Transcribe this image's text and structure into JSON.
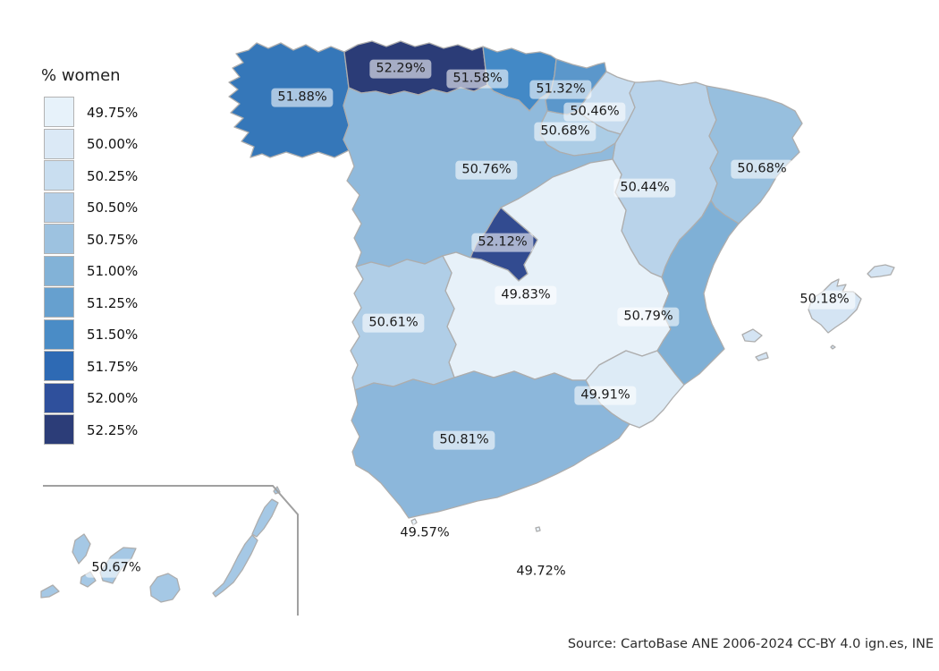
{
  "legend": {
    "title": "% women",
    "items": [
      {
        "label": "49.75%",
        "color": "#e7f2fa"
      },
      {
        "label": "50.00%",
        "color": "#dbe9f6"
      },
      {
        "label": "50.25%",
        "color": "#c9def0"
      },
      {
        "label": "50.50%",
        "color": "#b5d0e8"
      },
      {
        "label": "50.75%",
        "color": "#9dc2e0"
      },
      {
        "label": "51.00%",
        "color": "#82b2d7"
      },
      {
        "label": "51.25%",
        "color": "#66a0cf"
      },
      {
        "label": "51.50%",
        "color": "#4a8cc6"
      },
      {
        "label": "51.75%",
        "color": "#2e6ab4"
      },
      {
        "label": "52.00%",
        "color": "#2f509c"
      },
      {
        "label": "52.25%",
        "color": "#2c3d78"
      }
    ]
  },
  "map": {
    "regions": [
      {
        "id": "galicia",
        "name": "Galicia",
        "value": 51.88,
        "label": "51.88%",
        "fill": "#3577b9"
      },
      {
        "id": "asturias",
        "name": "Asturias",
        "value": 52.29,
        "label": "52.29%",
        "fill": "#2b3c77"
      },
      {
        "id": "cantabria",
        "name": "Cantabria",
        "value": 51.58,
        "label": "51.58%",
        "fill": "#4389c6"
      },
      {
        "id": "pais_vasco",
        "name": "Pais Vasco",
        "value": 51.32,
        "label": "51.32%",
        "fill": "#5b97cb"
      },
      {
        "id": "navarra",
        "name": "Navarra",
        "value": 50.46,
        "label": "50.46%",
        "fill": "#c7dcef"
      },
      {
        "id": "la_rioja",
        "name": "La Rioja",
        "value": 50.68,
        "label": "50.68%",
        "fill": "#accde6"
      },
      {
        "id": "aragon",
        "name": "Aragon",
        "value": 50.44,
        "label": "50.44%",
        "fill": "#b9d3ea"
      },
      {
        "id": "cataluna",
        "name": "Cataluna",
        "value": 50.68,
        "label": "50.68%",
        "fill": "#97bfde"
      },
      {
        "id": "castilla_y_leon",
        "name": "Castilla y Leon",
        "value": 50.76,
        "label": "50.76%",
        "fill": "#90badc"
      },
      {
        "id": "madrid",
        "name": "Comunidad de Madrid",
        "value": 52.12,
        "label": "52.12%",
        "fill": "#324b90"
      },
      {
        "id": "castilla_la_mancha",
        "name": "Castilla-La Mancha",
        "value": 49.83,
        "label": "49.83%",
        "fill": "#e7f1f9"
      },
      {
        "id": "extremadura",
        "name": "Extremadura",
        "value": 50.61,
        "label": "50.61%",
        "fill": "#b0cee7"
      },
      {
        "id": "comunidad_valenciana",
        "name": "Comunitat Valenciana",
        "value": 50.79,
        "label": "50.79%",
        "fill": "#7fb0d6"
      },
      {
        "id": "murcia",
        "name": "Region de Murcia",
        "value": 49.91,
        "label": "49.91%",
        "fill": "#ddebf6"
      },
      {
        "id": "andalucia",
        "name": "Andalucia",
        "value": 50.81,
        "label": "50.81%",
        "fill": "#8cb7db"
      },
      {
        "id": "baleares",
        "name": "Illes Balears",
        "value": 50.18,
        "label": "50.18%",
        "fill": "#d4e4f3"
      },
      {
        "id": "canarias",
        "name": "Canarias",
        "value": 50.67,
        "label": "50.67%",
        "fill": "#a5c8e5"
      },
      {
        "id": "ceuta",
        "name": "Ceuta",
        "value": 49.57,
        "label": "49.57%",
        "fill": "#eaf3fa"
      },
      {
        "id": "melilla",
        "name": "Melilla",
        "value": 49.72,
        "label": "49.72%",
        "fill": "#eaf3fa"
      }
    ]
  },
  "footer": {
    "source": "Source: CartoBase ANE 2006-2024 CC-BY 4.0 ign.es, INE"
  },
  "chart_data": {
    "type": "heatmap",
    "subtype": "choropleth_map_spain",
    "title": "% women",
    "unit": "%",
    "legend_position": "left",
    "legend_breaks": [
      49.75,
      50.0,
      50.25,
      50.5,
      50.75,
      51.0,
      51.25,
      51.5,
      51.75,
      52.0,
      52.25
    ],
    "categories": [
      "Galicia",
      "Asturias",
      "Cantabria",
      "Pais Vasco",
      "Navarra",
      "La Rioja",
      "Aragon",
      "Cataluna",
      "Castilla y Leon",
      "Comunidad de Madrid",
      "Castilla-La Mancha",
      "Extremadura",
      "Comunitat Valenciana",
      "Region de Murcia",
      "Andalucia",
      "Illes Balears",
      "Canarias",
      "Ceuta",
      "Melilla"
    ],
    "values": [
      51.88,
      52.29,
      51.58,
      51.32,
      50.46,
      50.68,
      50.44,
      50.68,
      50.76,
      52.12,
      49.83,
      50.61,
      50.79,
      49.91,
      50.81,
      50.18,
      50.67,
      49.57,
      49.72
    ],
    "source": "Source: CartoBase ANE 2006-2024 CC-BY 4.0 ign.es, INE"
  }
}
